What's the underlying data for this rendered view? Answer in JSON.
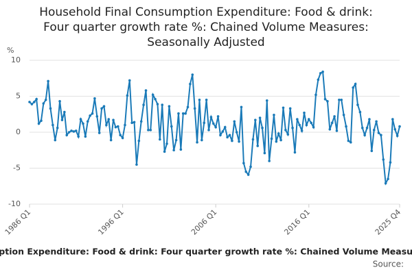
{
  "chart_data": {
    "type": "line",
    "title": [
      "Household Final Consumption Expenditure: Food & drink:",
      "Four quarter growth rate %: Chained Volume Measures:",
      "Seasonally Adjusted"
    ],
    "y_unit": "%",
    "footer_title": "Household Final Consumption Expenditure: Food & drink: Four quarter growth rate %: Chained Volume Measures: Seasonally Adjusted",
    "source": "Source:",
    "ylim": [
      -10,
      10
    ],
    "yticks": [
      10,
      5,
      0,
      -5,
      -10
    ],
    "grid": true,
    "categories": [
      "1986 Q1",
      null,
      null,
      null,
      null,
      null,
      null,
      null,
      null,
      null,
      null,
      null,
      null,
      null,
      null,
      null,
      null,
      null,
      null,
      null,
      null,
      null,
      null,
      null,
      null,
      null,
      null,
      null,
      null,
      null,
      null,
      null,
      null,
      null,
      null,
      null,
      null,
      null,
      null,
      null,
      "1996 Q1",
      null,
      null,
      null,
      null,
      null,
      null,
      null,
      null,
      null,
      null,
      null,
      null,
      null,
      null,
      null,
      null,
      null,
      null,
      null,
      null,
      null,
      null,
      null,
      null,
      null,
      null,
      null,
      null,
      null,
      null,
      null,
      null,
      null,
      null,
      null,
      null,
      null,
      null,
      null,
      "2006 Q1",
      null,
      null,
      null,
      null,
      null,
      null,
      null,
      null,
      null,
      null,
      null,
      null,
      null,
      null,
      null,
      null,
      null,
      null,
      null,
      null,
      null,
      null,
      null,
      null,
      null,
      null,
      null,
      null,
      null,
      null,
      null,
      null,
      null,
      null,
      null,
      null,
      null,
      null,
      null,
      "2016 Q1",
      null,
      null,
      null,
      null,
      null,
      null,
      null,
      null,
      null,
      null,
      null,
      null,
      null,
      null,
      null,
      null,
      null,
      null,
      null,
      null,
      null,
      null,
      null,
      null,
      null,
      null,
      null,
      null,
      null,
      null,
      null,
      null,
      null,
      null,
      null,
      null,
      null,
      null,
      "2025 Q4"
    ],
    "series": [
      {
        "name": "Four quarter growth rate",
        "color": "#1a7ab8",
        "values": [
          4.2,
          3.9,
          4.2,
          4.6,
          1.2,
          1.6,
          4.0,
          4.5,
          7.1,
          3.3,
          1.0,
          -1.1,
          0.6,
          4.3,
          1.7,
          2.8,
          -0.4,
          0.0,
          0.2,
          0.1,
          0.2,
          -0.6,
          1.8,
          1.2,
          -0.6,
          1.5,
          2.3,
          2.6,
          4.7,
          2.2,
          -0.1,
          3.3,
          3.6,
          1.0,
          1.8,
          -1.1,
          1.7,
          0.7,
          0.8,
          -0.4,
          -0.8,
          1.0,
          5.1,
          7.2,
          1.3,
          1.4,
          -4.5,
          -1.2,
          1.5,
          3.8,
          5.8,
          0.3,
          0.3,
          5.2,
          4.6,
          3.9,
          -1.0,
          3.8,
          -2.7,
          -1.6,
          3.6,
          0.8,
          -2.5,
          -1.1,
          2.6,
          -2.4,
          2.6,
          2.6,
          3.5,
          6.7,
          8.0,
          3.3,
          -1.4,
          4.5,
          -1.1,
          1.3,
          4.5,
          0.3,
          2.1,
          1.2,
          0.7,
          2.2,
          -0.4,
          0.1,
          0.7,
          -0.7,
          -0.4,
          -1.2,
          1.5,
          0.0,
          -1.3,
          3.5,
          -4.3,
          -5.5,
          -5.9,
          -4.8,
          -1.0,
          1.7,
          -1.9,
          2.0,
          0.6,
          -2.9,
          4.4,
          -4.0,
          -0.9,
          2.4,
          -1.3,
          -0.2,
          -1.1,
          3.4,
          0.3,
          -0.3,
          3.3,
          0.6,
          -2.8,
          1.8,
          1.0,
          0.2,
          2.7,
          1.0,
          1.8,
          1.3,
          0.7,
          5.2,
          7.3,
          8.2,
          8.4,
          4.6,
          4.3,
          0.4,
          1.3,
          2.2,
          0.2,
          4.5,
          4.5,
          2.4,
          0.8,
          -1.2,
          -1.4,
          6.2,
          6.7,
          3.8,
          2.8,
          0.6,
          -0.4,
          0.6,
          1.8,
          -2.6,
          0.3,
          1.5,
          -0.1,
          -0.4,
          -3.8,
          -7.1,
          -6.5,
          -4.2,
          1.8,
          0.4,
          -0.5,
          0.8
        ]
      }
    ]
  }
}
